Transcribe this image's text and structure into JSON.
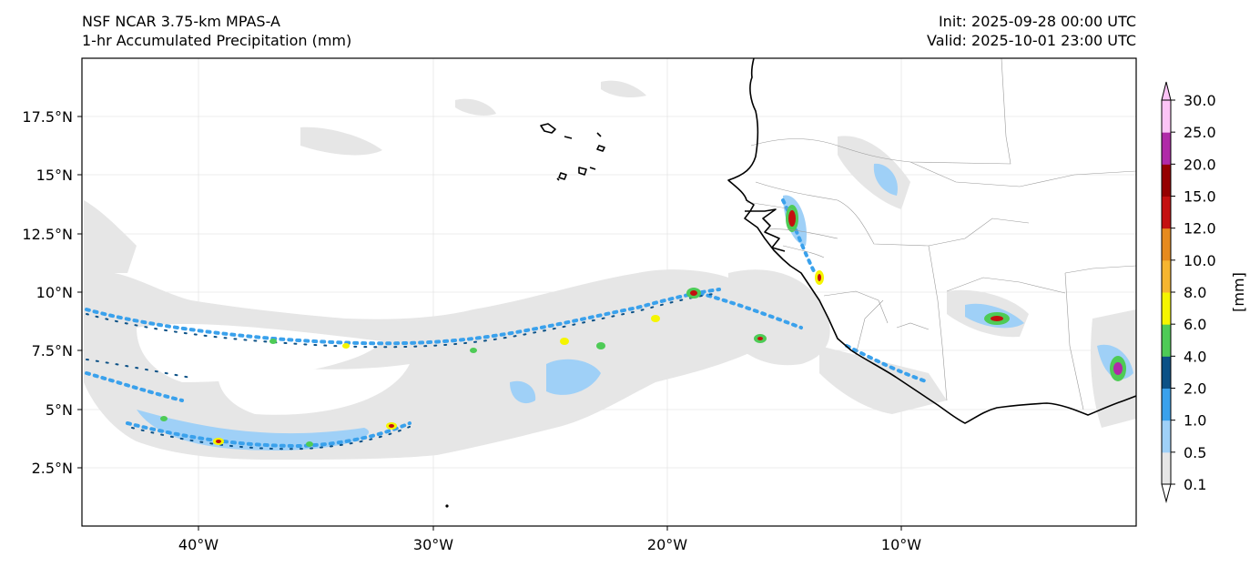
{
  "header": {
    "left_line1": "NSF NCAR 3.75-km MPAS-A",
    "left_line2": "1-hr Accumulated Precipitation (mm)",
    "right_line1": "Init: 2025-09-28 00:00 UTC",
    "right_line2": "Valid: 2025-10-01 23:00 UTC"
  },
  "map": {
    "lat_ticks": [
      "17.5°N",
      "15°N",
      "12.5°N",
      "10°N",
      "7.5°N",
      "5°N",
      "2.5°N"
    ],
    "lon_ticks": [
      "40°W",
      "30°W",
      "20°W",
      "10°W"
    ]
  },
  "colorbar": {
    "label": "[mm]",
    "levels": [
      "0.1",
      "0.5",
      "1.0",
      "2.0",
      "4.0",
      "6.0",
      "8.0",
      "10.0",
      "12.0",
      "15.0",
      "20.0",
      "25.0",
      "30.0"
    ],
    "colors": [
      "#e6e6e6",
      "#9fd0f7",
      "#3aa1ec",
      "#0c5186",
      "#4ecb56",
      "#f5f500",
      "#f6b530",
      "#e68a1e",
      "#c41010",
      "#950000",
      "#b02aa8",
      "#fcc4f6"
    ]
  }
}
